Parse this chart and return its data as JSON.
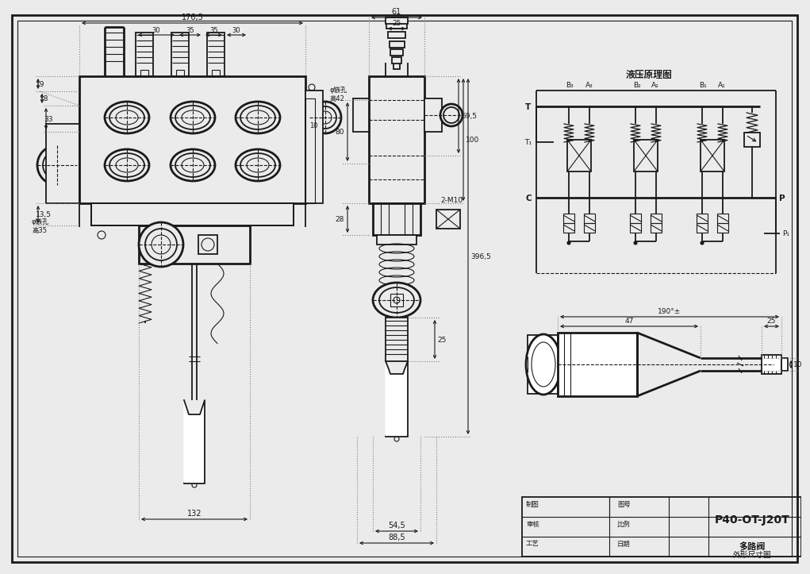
{
  "bg_color": "#ebebeb",
  "line_color": "#1a1a1a",
  "dim_color": "#1a1a1a",
  "title": "P40-OT-J20T",
  "subtitle_line1": "多路阀",
  "subtitle_line2": "外形尺寸图",
  "hydraulic_title": "液压原理图",
  "dim_176_5": "176,5",
  "dim_30": "30",
  "dim_35": "35",
  "dim_61": "61",
  "dim_25": "25",
  "dim_59_5": "59,5",
  "dim_100": "100",
  "dim_396_5": "396,5",
  "dim_80": "80",
  "dim_28": "28",
  "dim_19": "19",
  "dim_18": "18",
  "dim_33": "33",
  "dim_13_5": "13,5",
  "dim_10": "10",
  "dim_132": "132",
  "dim_88_5": "88,5",
  "dim_54_5": "54,5",
  "dim_190": "190°",
  "dim_47": "47",
  "dim_25b": "25",
  "dim_2M10": "2-M10",
  "note_hole1": "φ镞孔\n高42",
  "note_hole2": "φ镞孔\n高35",
  "label_T": "T",
  "label_T1": "T₁",
  "label_C": "C",
  "label_P": "P",
  "label_P1": "P₁",
  "label_B3": "B₃",
  "label_A3": "A₃",
  "label_B2": "B₂",
  "label_A2": "A₂",
  "label_B1": "B₁",
  "label_A1": "A₁",
  "label_zhitu": "制图",
  "label_shenhe": "审核",
  "label_gongyi": "工艺",
  "label_tubiao": "图号",
  "label_bili": "比例",
  "label_riqi": "日期"
}
